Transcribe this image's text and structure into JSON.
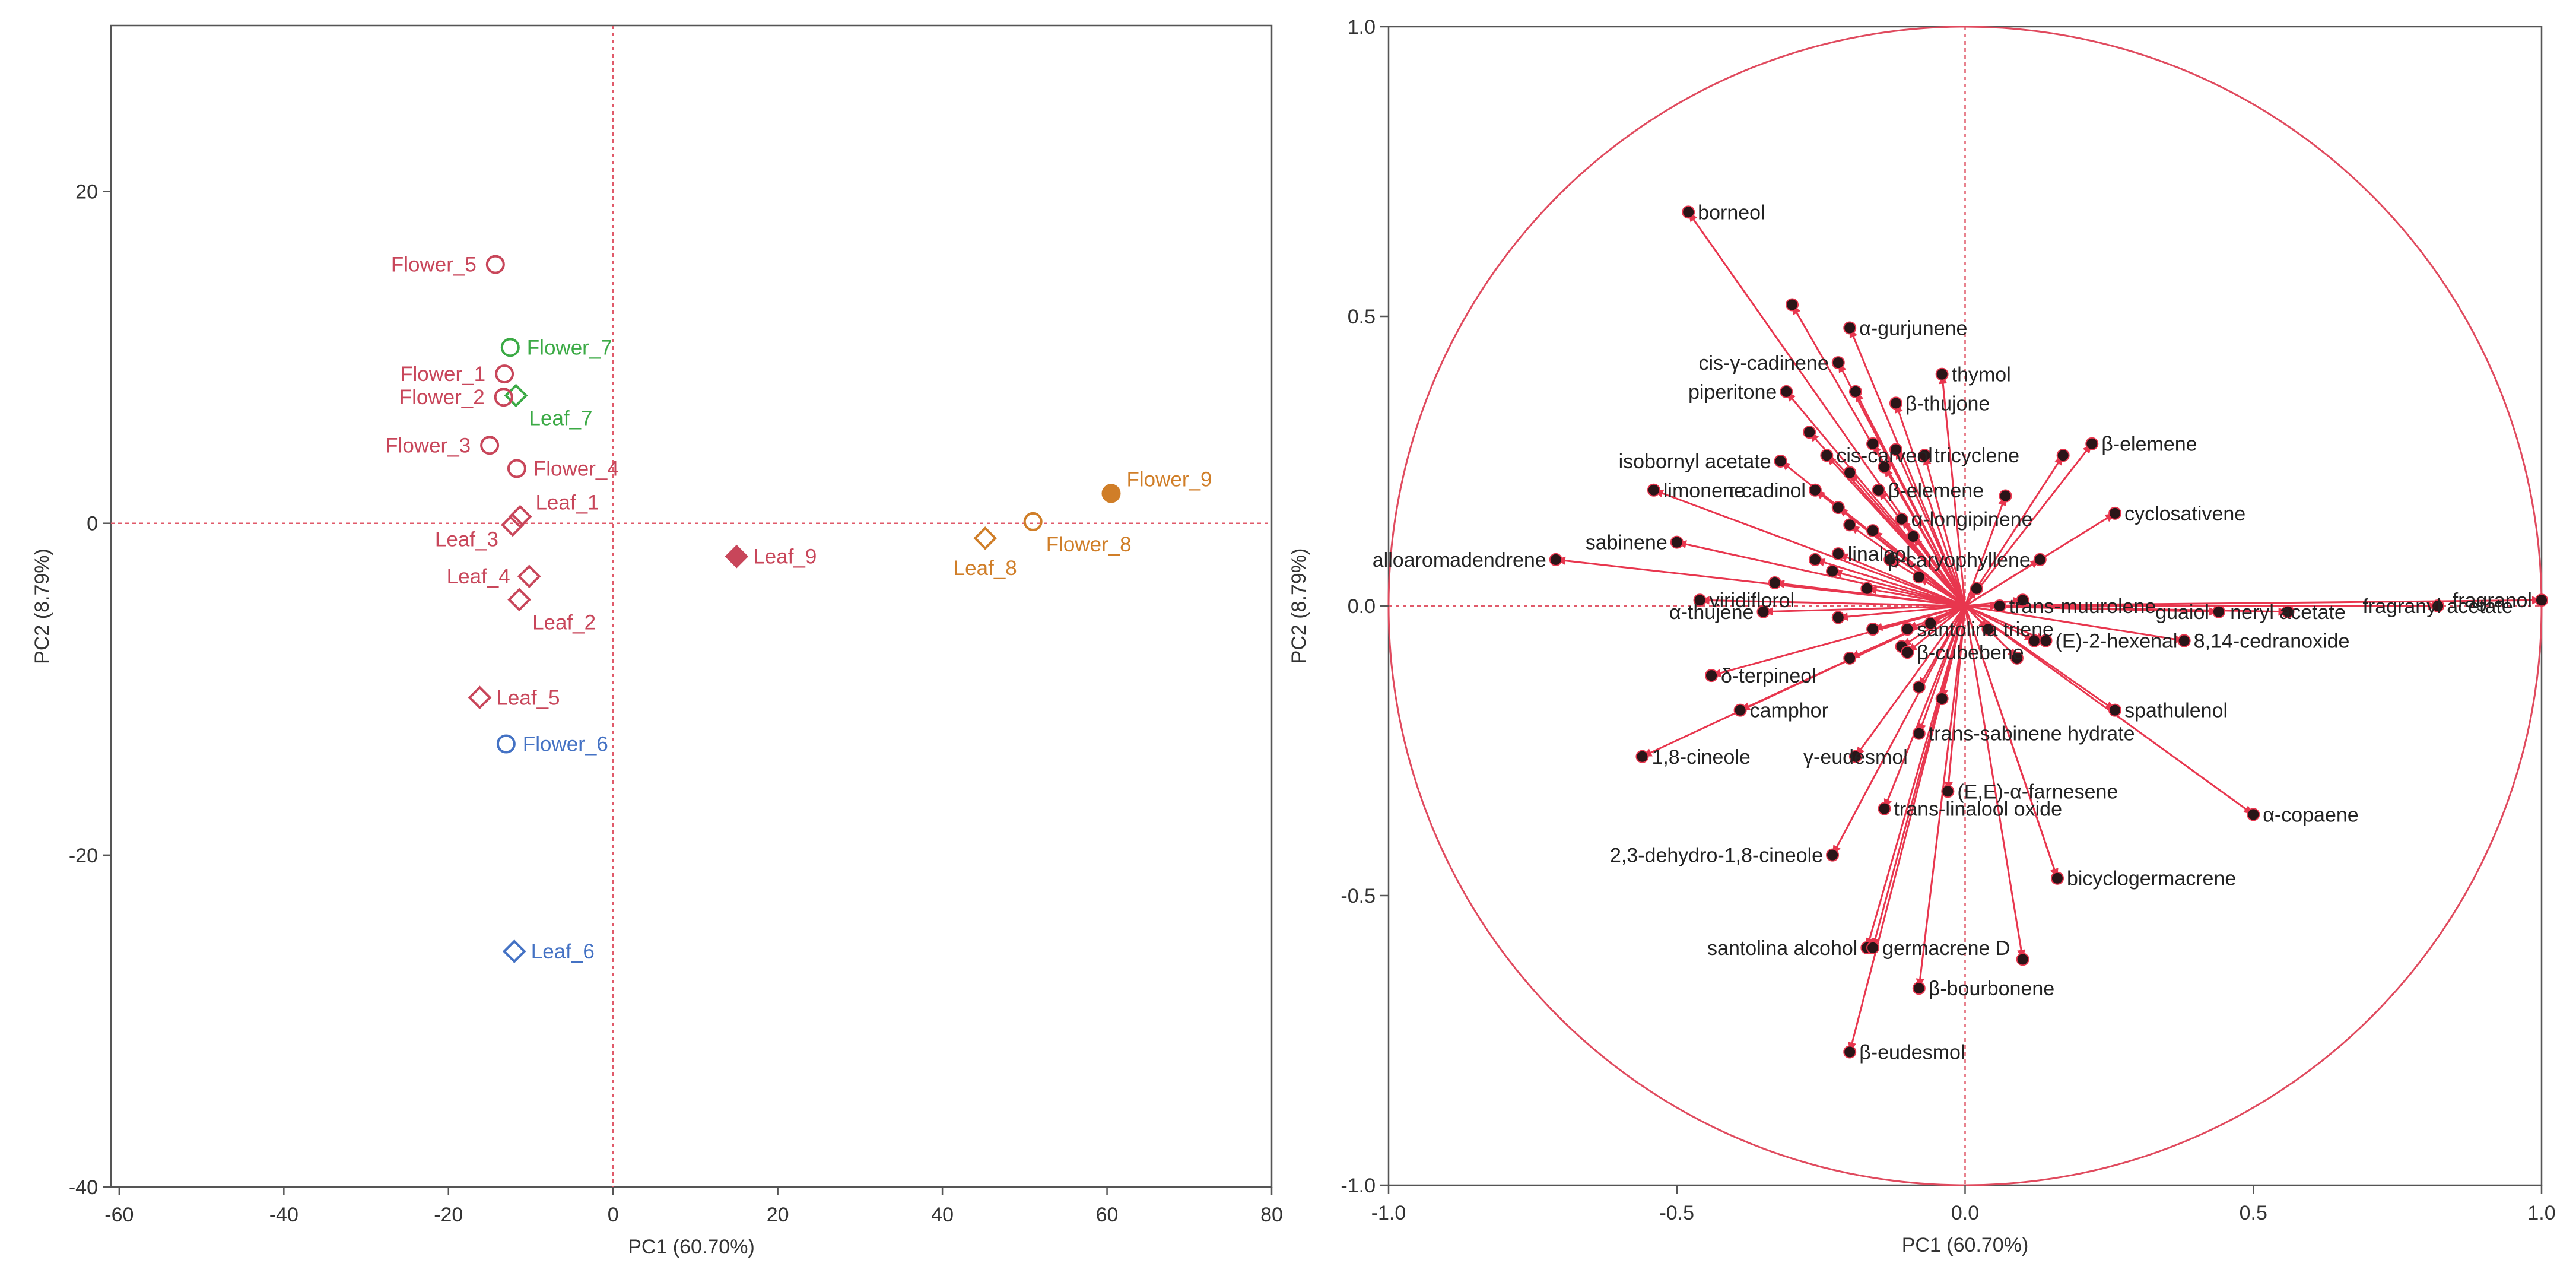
{
  "chart_data": [
    {
      "type": "scatter",
      "title": "",
      "xlabel": "PC1 (60.70%)",
      "ylabel": "PC2 (8.79%)",
      "xlim": [
        -61,
        80
      ],
      "ylim": [
        -40,
        30
      ],
      "x_ticks": [
        "-60",
        "-40",
        "-20",
        "0",
        "20",
        "40",
        "60",
        "80"
      ],
      "y_ticks": [
        "20",
        "0",
        "-20",
        "-40"
      ],
      "grid": false,
      "reference_lines": "dashed at x=0 and y=0",
      "colors": {
        "red": "#C8465A",
        "green": "#3BAA45",
        "blue": "#4472C4",
        "orange": "#D07E28",
        "axis": "#555555",
        "reference": "#E05A6A"
      },
      "points": [
        {
          "label": "Flower_5",
          "x": -14.3,
          "y": 15.6,
          "marker": "circle",
          "filled": false,
          "color": "red",
          "label_pos": "left"
        },
        {
          "label": "Flower_7",
          "x": -12.5,
          "y": 10.6,
          "marker": "circle",
          "filled": false,
          "color": "green",
          "label_pos": "right"
        },
        {
          "label": "Flower_1",
          "x": -13.2,
          "y": 9.0,
          "marker": "circle",
          "filled": false,
          "color": "red",
          "label_pos": "left"
        },
        {
          "label": "Leaf_7",
          "x": -11.8,
          "y": 7.7,
          "marker": "diamond",
          "filled": false,
          "color": "green",
          "label_pos": "below-right"
        },
        {
          "label": "Flower_2",
          "x": -13.3,
          "y": 7.6,
          "marker": "circle",
          "filled": false,
          "color": "red",
          "label_pos": "left"
        },
        {
          "label": "Flower_3",
          "x": -15.0,
          "y": 4.7,
          "marker": "circle",
          "filled": false,
          "color": "red",
          "label_pos": "left"
        },
        {
          "label": "Flower_4",
          "x": -11.7,
          "y": 3.3,
          "marker": "circle",
          "filled": false,
          "color": "red",
          "label_pos": "right"
        },
        {
          "label": "Leaf_1",
          "x": -11.3,
          "y": 0.4,
          "marker": "diamond",
          "filled": false,
          "color": "red",
          "label_pos": "upper-right"
        },
        {
          "label": "Leaf_3",
          "x": -12.2,
          "y": -0.1,
          "marker": "diamond",
          "filled": false,
          "color": "red",
          "label_pos": "lower-left"
        },
        {
          "label": "Leaf_4",
          "x": -10.2,
          "y": -3.2,
          "marker": "diamond",
          "filled": false,
          "color": "red",
          "label_pos": "left"
        },
        {
          "label": "Leaf_2",
          "x": -11.4,
          "y": -4.6,
          "marker": "diamond",
          "filled": false,
          "color": "red",
          "label_pos": "below-right"
        },
        {
          "label": "Leaf_5",
          "x": -16.2,
          "y": -10.5,
          "marker": "diamond",
          "filled": false,
          "color": "red",
          "label_pos": "right"
        },
        {
          "label": "Flower_6",
          "x": -13.0,
          "y": -13.3,
          "marker": "circle",
          "filled": false,
          "color": "blue",
          "label_pos": "right"
        },
        {
          "label": "Leaf_6",
          "x": -12.0,
          "y": -25.8,
          "marker": "diamond",
          "filled": false,
          "color": "blue",
          "label_pos": "right"
        },
        {
          "label": "Leaf_9",
          "x": 15.0,
          "y": -2.0,
          "marker": "diamond",
          "filled": true,
          "color": "red",
          "label_pos": "right"
        },
        {
          "label": "Leaf_8",
          "x": 45.2,
          "y": -0.9,
          "marker": "diamond",
          "filled": false,
          "color": "orange",
          "label_pos": "below"
        },
        {
          "label": "Flower_8",
          "x": 51.0,
          "y": 0.1,
          "marker": "circle",
          "filled": false,
          "color": "orange",
          "label_pos": "below-right"
        },
        {
          "label": "Flower_9",
          "x": 60.5,
          "y": 1.8,
          "marker": "circle",
          "filled": true,
          "color": "orange",
          "label_pos": "upper-right"
        }
      ]
    },
    {
      "type": "scatter",
      "subtype": "loading-plot-with-vectors",
      "title": "",
      "xlabel": "PC1 (60.70%)",
      "ylabel": "PC2 (8.79%)",
      "xlim": [
        -1.0,
        1.0
      ],
      "ylim": [
        -1.0,
        1.0
      ],
      "x_ticks": [
        "-1.0",
        "-0.5",
        "0.0",
        "0.5",
        "1.0"
      ],
      "y_ticks": [
        "1.0",
        "0.5",
        "0.0",
        "-0.5",
        "-1.0"
      ],
      "unit_circle": true,
      "grid": false,
      "colors": {
        "arrow": "#E8364E",
        "point": "#2A1518",
        "circle": "#E04A5E",
        "text": "#222222"
      },
      "labeled_loadings": [
        {
          "name": "borneol",
          "x": -0.48,
          "y": 0.68,
          "anchor": "start"
        },
        {
          "name": "α-gurjunene",
          "x": -0.2,
          "y": 0.48,
          "anchor": "start"
        },
        {
          "name": "thymol",
          "x": -0.04,
          "y": 0.4,
          "anchor": "start"
        },
        {
          "name": "cis-γ-cadinene",
          "x": -0.22,
          "y": 0.42,
          "anchor": "end"
        },
        {
          "name": "β-thujone",
          "x": -0.12,
          "y": 0.35,
          "anchor": "start"
        },
        {
          "name": "piperitone",
          "x": -0.31,
          "y": 0.37,
          "anchor": "end"
        },
        {
          "name": "β-elemene",
          "x": 0.22,
          "y": 0.28,
          "anchor": "start"
        },
        {
          "name": "isobornyl acetate",
          "x": -0.32,
          "y": 0.25,
          "anchor": "end"
        },
        {
          "name": "cis-carveol",
          "x": -0.24,
          "y": 0.26,
          "anchor": "start"
        },
        {
          "name": "tricyclene",
          "x": -0.07,
          "y": 0.26,
          "anchor": "start"
        },
        {
          "name": "limonene",
          "x": -0.54,
          "y": 0.2,
          "anchor": "start"
        },
        {
          "name": "τ-cadinol",
          "x": -0.26,
          "y": 0.2,
          "anchor": "end"
        },
        {
          "name": "β-elemene",
          "x": -0.15,
          "y": 0.2,
          "anchor": "start"
        },
        {
          "name": "α-longipinene",
          "x": -0.11,
          "y": 0.15,
          "anchor": "start"
        },
        {
          "name": "cyclosativene",
          "x": 0.26,
          "y": 0.16,
          "anchor": "start"
        },
        {
          "name": "sabinene",
          "x": -0.5,
          "y": 0.11,
          "anchor": "end"
        },
        {
          "name": "linalool",
          "x": -0.22,
          "y": 0.09,
          "anchor": "start"
        },
        {
          "name": "β-caryophyllene",
          "x": 0.13,
          "y": 0.08,
          "anchor": "end"
        },
        {
          "name": "fragranyl acetate",
          "x": 0.82,
          "y": 0.0,
          "anchor": "middle"
        },
        {
          "name": "fragranol",
          "x": 1.0,
          "y": 0.01,
          "anchor": "end"
        },
        {
          "name": "alloaromadendrene",
          "x": -0.71,
          "y": 0.08,
          "anchor": "end"
        },
        {
          "name": "viridiflorol",
          "x": -0.46,
          "y": 0.01,
          "anchor": "start"
        },
        {
          "name": "trans-muurolene",
          "x": 0.06,
          "y": 0.0,
          "anchor": "start"
        },
        {
          "name": "guaiol",
          "x": 0.44,
          "y": -0.01,
          "anchor": "end"
        },
        {
          "name": "neryl acetate",
          "x": 0.56,
          "y": -0.01,
          "anchor": "middle"
        },
        {
          "name": "8,14-cedranoxide",
          "x": 0.38,
          "y": -0.06,
          "anchor": "start"
        },
        {
          "name": "α-thujene",
          "x": -0.35,
          "y": -0.01,
          "anchor": "end"
        },
        {
          "name": "santolina triene",
          "x": -0.1,
          "y": -0.04,
          "anchor": "start"
        },
        {
          "name": "(E)-2-hexenal",
          "x": 0.14,
          "y": -0.06,
          "anchor": "start"
        },
        {
          "name": "δ-terpineol",
          "x": -0.44,
          "y": -0.12,
          "anchor": "start"
        },
        {
          "name": "β-cubebene",
          "x": -0.1,
          "y": -0.08,
          "anchor": "start"
        },
        {
          "name": "spathulenol",
          "x": 0.26,
          "y": -0.18,
          "anchor": "start"
        },
        {
          "name": "camphor",
          "x": -0.39,
          "y": -0.18,
          "anchor": "start"
        },
        {
          "name": "trans-sabinene hydrate",
          "x": -0.08,
          "y": -0.22,
          "anchor": "start"
        },
        {
          "name": "1,8-cineole",
          "x": -0.56,
          "y": -0.26,
          "anchor": "start"
        },
        {
          "name": "γ-eudesmol",
          "x": -0.19,
          "y": -0.26,
          "anchor": "middle"
        },
        {
          "name": "(E,E)-α-farnesene",
          "x": -0.03,
          "y": -0.32,
          "anchor": "start"
        },
        {
          "name": "α-copaene",
          "x": 0.5,
          "y": -0.36,
          "anchor": "start"
        },
        {
          "name": "trans-linalool oxide",
          "x": -0.14,
          "y": -0.35,
          "anchor": "start"
        },
        {
          "name": "2,3-dehydro-1,8-cineole",
          "x": -0.23,
          "y": -0.43,
          "anchor": "end"
        },
        {
          "name": "bicyclogermacrene",
          "x": 0.16,
          "y": -0.47,
          "anchor": "start"
        },
        {
          "name": "santolina alcohol",
          "x": -0.17,
          "y": -0.59,
          "anchor": "end"
        },
        {
          "name": "germacrene D",
          "x": -0.16,
          "y": -0.59,
          "anchor": "start"
        },
        {
          "name": "β-bourbonene",
          "x": -0.08,
          "y": -0.66,
          "anchor": "start"
        },
        {
          "name": "β-eudesmol",
          "x": -0.2,
          "y": -0.77,
          "anchor": "start"
        }
      ],
      "unlabeled_loadings": [
        [
          -0.3,
          0.52
        ],
        [
          -0.19,
          0.37
        ],
        [
          -0.27,
          0.3
        ],
        [
          -0.16,
          0.28
        ],
        [
          -0.12,
          0.27
        ],
        [
          -0.2,
          0.23
        ],
        [
          -0.14,
          0.24
        ],
        [
          0.07,
          0.19
        ],
        [
          0.17,
          0.26
        ],
        [
          -0.22,
          0.17
        ],
        [
          -0.2,
          0.14
        ],
        [
          -0.16,
          0.13
        ],
        [
          -0.09,
          0.12
        ],
        [
          -0.26,
          0.08
        ],
        [
          -0.13,
          0.08
        ],
        [
          -0.33,
          0.04
        ],
        [
          -0.23,
          0.06
        ],
        [
          -0.17,
          0.03
        ],
        [
          -0.08,
          0.05
        ],
        [
          0.02,
          0.03
        ],
        [
          0.1,
          0.01
        ],
        [
          -0.22,
          -0.02
        ],
        [
          -0.16,
          -0.04
        ],
        [
          -0.06,
          -0.03
        ],
        [
          0.04,
          -0.04
        ],
        [
          0.12,
          -0.06
        ],
        [
          -0.11,
          -0.07
        ],
        [
          -0.2,
          -0.09
        ],
        [
          -0.08,
          -0.14
        ],
        [
          0.09,
          -0.09
        ],
        [
          -0.04,
          -0.16
        ],
        [
          0.1,
          -0.61
        ],
        [
          0.16,
          -0.47
        ]
      ]
    }
  ]
}
